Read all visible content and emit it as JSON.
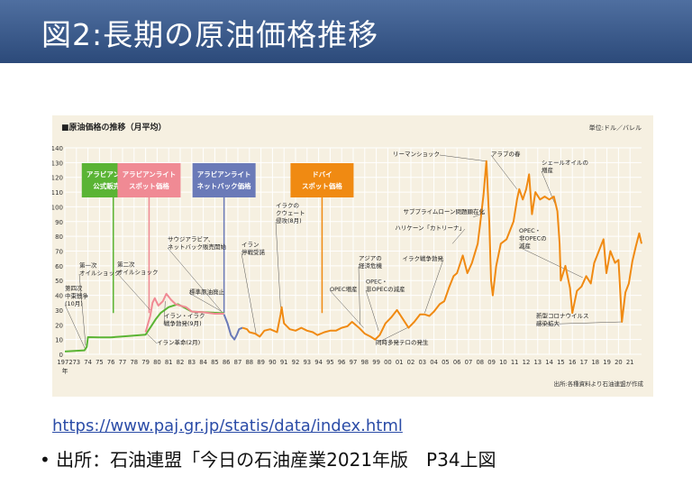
{
  "slide": {
    "title": "図2:長期の原油価格推移",
    "url": "https://www.paj.gr.jp/statis/data/index.html",
    "source": "• 出所：石油連盟「今日の石油産業2021年版　P34上図"
  },
  "colors": {
    "title_bg": "#3a5a8c",
    "arabian_official": "#5ab434",
    "arabian_spot": "#f08a94",
    "arabian_netback": "#6a7ab8",
    "dubai_spot": "#f08a12",
    "chart_bg": "#f6f0e1"
  },
  "chart_data": {
    "type": "line",
    "title": "■原油価格の推移（月平均）",
    "unit": "単位:ドル／バレル",
    "source_note": "出所:各種資料より石油連盟が作成",
    "ylim": [
      0,
      140
    ],
    "yticks": [
      0,
      10,
      20,
      30,
      40,
      50,
      60,
      70,
      80,
      90,
      100,
      110,
      120,
      130,
      140
    ],
    "xlim": [
      1972,
      2022
    ],
    "xticks": [
      "1972",
      "73",
      "74",
      "75",
      "76",
      "77",
      "78",
      "79",
      "80",
      "81",
      "82",
      "83",
      "84",
      "85",
      "86",
      "87",
      "88",
      "89",
      "90",
      "91",
      "92",
      "93",
      "94",
      "95",
      "96",
      "97",
      "98",
      "99",
      "00",
      "01",
      "02",
      "03",
      "04",
      "05",
      "06",
      "07",
      "08",
      "09",
      "10",
      "11",
      "12",
      "13",
      "14",
      "15",
      "16",
      "17",
      "18",
      "19",
      "20",
      "21"
    ],
    "xlabel_suffix": "年",
    "series": [
      {
        "name": "アラビアンライト 公式販売価格",
        "color": "#5ab434",
        "points": [
          [
            1972,
            1.9
          ],
          [
            1973.7,
            2.7
          ],
          [
            1973.9,
            5.1
          ],
          [
            1974,
            11.6
          ],
          [
            1975,
            11.5
          ],
          [
            1976,
            11.5
          ],
          [
            1977,
            12.1
          ],
          [
            1978,
            12.7
          ],
          [
            1979,
            13.3
          ],
          [
            1979.4,
            18
          ],
          [
            1979.9,
            24
          ],
          [
            1980.3,
            28
          ],
          [
            1981,
            32
          ],
          [
            1981.8,
            34
          ],
          [
            1983,
            29
          ],
          [
            1985.5,
            28
          ],
          [
            1985.8,
            28
          ]
        ]
      },
      {
        "name": "アラビアンライト スポット価格",
        "color": "#f08a94",
        "points": [
          [
            1979,
            15
          ],
          [
            1979.4,
            26
          ],
          [
            1979.6,
            35
          ],
          [
            1979.8,
            38
          ],
          [
            1980.1,
            33
          ],
          [
            1980.5,
            36
          ],
          [
            1980.8,
            41
          ],
          [
            1981.2,
            37
          ],
          [
            1981.6,
            34
          ],
          [
            1982,
            33
          ],
          [
            1982.5,
            32
          ],
          [
            1983,
            29
          ],
          [
            1984,
            28.5
          ],
          [
            1985,
            27.5
          ],
          [
            1985.8,
            27.5
          ]
        ]
      },
      {
        "name": "アラビアンライト ネットバック価格",
        "color": "#6a7ab8",
        "points": [
          [
            1985.8,
            27
          ],
          [
            1986.1,
            21
          ],
          [
            1986.4,
            13
          ],
          [
            1986.7,
            10
          ],
          [
            1986.9,
            13
          ],
          [
            1987.1,
            17
          ],
          [
            1987.4,
            18
          ]
        ]
      },
      {
        "name": "ドバイ スポット価格",
        "color": "#f08a12",
        "points": [
          [
            1987.4,
            18
          ],
          [
            1987.8,
            17
          ],
          [
            1988,
            15
          ],
          [
            1988.5,
            14
          ],
          [
            1988.9,
            12
          ],
          [
            1989.3,
            16
          ],
          [
            1989.8,
            17
          ],
          [
            1990.4,
            15
          ],
          [
            1990.7,
            27
          ],
          [
            1990.8,
            32
          ],
          [
            1991,
            21
          ],
          [
            1991.5,
            17
          ],
          [
            1992,
            16
          ],
          [
            1992.5,
            18
          ],
          [
            1993,
            16
          ],
          [
            1993.5,
            15
          ],
          [
            1993.9,
            13
          ],
          [
            1994.5,
            15
          ],
          [
            1995,
            16
          ],
          [
            1995.5,
            16
          ],
          [
            1996,
            18
          ],
          [
            1996.5,
            19
          ],
          [
            1996.9,
            22
          ],
          [
            1997.5,
            18
          ],
          [
            1998,
            14
          ],
          [
            1998.5,
            12
          ],
          [
            1998.9,
            10
          ],
          [
            1999.3,
            13
          ],
          [
            1999.8,
            21
          ],
          [
            2000.3,
            25
          ],
          [
            2000.8,
            30
          ],
          [
            2001.3,
            24
          ],
          [
            2001.8,
            18
          ],
          [
            2002.3,
            22
          ],
          [
            2002.8,
            27
          ],
          [
            2003.2,
            27
          ],
          [
            2003.6,
            26
          ],
          [
            2004,
            29
          ],
          [
            2004.5,
            34
          ],
          [
            2004.9,
            36
          ],
          [
            2005.3,
            45
          ],
          [
            2005.7,
            53
          ],
          [
            2006,
            55
          ],
          [
            2006.5,
            67
          ],
          [
            2006.9,
            55
          ],
          [
            2007.3,
            62
          ],
          [
            2007.8,
            75
          ],
          [
            2008,
            88
          ],
          [
            2008.3,
            108
          ],
          [
            2008.55,
            131
          ],
          [
            2008.8,
            90
          ],
          [
            2008.95,
            50
          ],
          [
            2009.1,
            40
          ],
          [
            2009.4,
            60
          ],
          [
            2009.8,
            75
          ],
          [
            2010.3,
            78
          ],
          [
            2010.9,
            90
          ],
          [
            2011.2,
            105
          ],
          [
            2011.4,
            112
          ],
          [
            2011.7,
            105
          ],
          [
            2012,
            112
          ],
          [
            2012.25,
            122
          ],
          [
            2012.5,
            95
          ],
          [
            2012.8,
            110
          ],
          [
            2013.2,
            105
          ],
          [
            2013.6,
            107
          ],
          [
            2014,
            105
          ],
          [
            2014.4,
            107
          ],
          [
            2014.7,
            97
          ],
          [
            2014.9,
            75
          ],
          [
            2015,
            50
          ],
          [
            2015.4,
            60
          ],
          [
            2015.8,
            45
          ],
          [
            2016,
            28
          ],
          [
            2016.4,
            43
          ],
          [
            2016.8,
            46
          ],
          [
            2017.2,
            53
          ],
          [
            2017.6,
            48
          ],
          [
            2017.9,
            62
          ],
          [
            2018.3,
            70
          ],
          [
            2018.7,
            78
          ],
          [
            2018.95,
            55
          ],
          [
            2019.3,
            70
          ],
          [
            2019.7,
            62
          ],
          [
            2020,
            64
          ],
          [
            2020.3,
            22
          ],
          [
            2020.6,
            42
          ],
          [
            2020.9,
            48
          ],
          [
            2021.2,
            63
          ],
          [
            2021.5,
            73
          ],
          [
            2021.8,
            82
          ],
          [
            2022,
            75
          ]
        ]
      }
    ],
    "boxes": [
      {
        "text1": "アラビアンライト",
        "text2": "公式販売価格",
        "color": "#5ab434",
        "anchor_x": 1976.2
      },
      {
        "text1": "アラビアンライト",
        "text2": "スポット価格",
        "color": "#f08a94",
        "anchor_x": 1979.3
      },
      {
        "text1": "アラビアンライト",
        "text2": "ネットバック価格",
        "color": "#6a7ab8",
        "anchor_x": 1985.8
      },
      {
        "text1": "ドバイ",
        "text2": "スポット価格",
        "color": "#f08a12",
        "anchor_x": 1994.3
      }
    ],
    "annotations": [
      {
        "lines": [
          "リーマンショック"
        ],
        "x": 2008.5,
        "y": 131
      },
      {
        "lines": [
          "アラブの春"
        ],
        "x": 2011.2,
        "y": 112
      },
      {
        "lines": [
          "シェールオイルの",
          "増産"
        ],
        "x": 2014.6,
        "y": 100
      },
      {
        "lines": [
          "サブプライムローン問題顕在化"
        ],
        "x": 2007.4,
        "y": 93
      },
      {
        "lines": [
          "ハリケーン「カトリーナ」"
        ],
        "x": 2005.6,
        "y": 75
      },
      {
        "lines": [
          "イラク戦争勃発"
        ],
        "x": 2003.2,
        "y": 28
      },
      {
        "lines": [
          "アジアの",
          "経済危機"
        ],
        "x": 1997.6,
        "y": 20
      },
      {
        "lines": [
          "OPEC増産"
        ],
        "x": 1997.9,
        "y": 18
      },
      {
        "lines": [
          "OPEC・",
          "非OPECの減産"
        ],
        "x": 1999.2,
        "y": 16
      },
      {
        "lines": [
          "同時多発テロの発生"
        ],
        "x": 2001.7,
        "y": 18
      },
      {
        "lines": [
          "OPEC・",
          "非OPECの",
          "減産"
        ],
        "x": 2016.9,
        "y": 52
      },
      {
        "lines": [
          "新型コロナウイルス",
          "感染拡大"
        ],
        "x": 2020.3,
        "y": 22
      },
      {
        "lines": [
          "イラクの",
          "クウェート",
          "侵攻(8月)"
        ],
        "x": 1990.7,
        "y": 32
      },
      {
        "lines": [
          "イラン",
          "停戦受諾"
        ],
        "x": 1988.6,
        "y": 13
      },
      {
        "lines": [
          "サウジアラビア、",
          "ネットバック販売開始"
        ],
        "x": 1985.7,
        "y": 28
      },
      {
        "lines": [
          "標準原油廃止"
        ],
        "x": 1985.6,
        "y": 29
      },
      {
        "lines": [
          "第二次",
          "オイルショック"
        ],
        "x": 1979.4,
        "y": 30
      },
      {
        "lines": [
          "第一次",
          "オイルショック"
        ],
        "x": 1973.8,
        "y": 6
      },
      {
        "lines": [
          "第四次",
          "中東戦争",
          "(10月)"
        ],
        "x": 1973.8,
        "y": 3
      },
      {
        "lines": [
          "イラン・イラク",
          "戦争勃発(9月)"
        ],
        "x": 1980.7,
        "y": 36
      },
      {
        "lines": [
          "イラン革命(2月)"
        ],
        "x": 1979.1,
        "y": 14
      }
    ]
  }
}
